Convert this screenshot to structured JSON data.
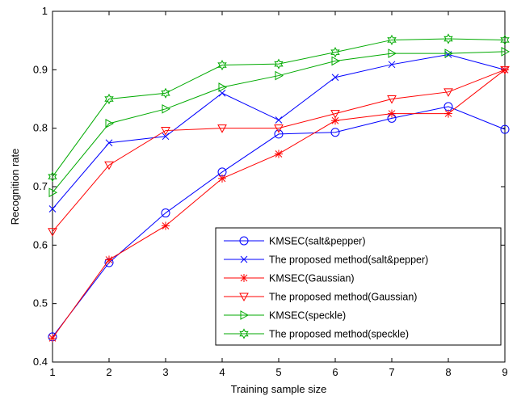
{
  "chart_data": {
    "type": "line",
    "xlabel": "Training sample size",
    "ylabel": "Recognition rate",
    "xlim": [
      1,
      9
    ],
    "ylim": [
      0.4,
      1
    ],
    "x": [
      1,
      2,
      3,
      4,
      5,
      6,
      7,
      8,
      9
    ],
    "x_ticks": [
      "1",
      "2",
      "3",
      "4",
      "5",
      "6",
      "7",
      "8",
      "9"
    ],
    "y_ticks": [
      "0.4",
      "0.5",
      "0.6",
      "0.7",
      "0.8",
      "0.9",
      "1"
    ],
    "y_tick_values": [
      0.4,
      0.5,
      0.6,
      0.7,
      0.8,
      0.9,
      1.0
    ],
    "grid": false,
    "legend_position": "bottom-right",
    "series": [
      {
        "name": "KMSEC(salt&pepper)",
        "color": "#0000ff",
        "marker": "circle",
        "values": [
          0.443,
          0.57,
          0.655,
          0.725,
          0.79,
          0.793,
          0.817,
          0.837,
          0.798
        ]
      },
      {
        "name": "The proposed method(salt&pepper)",
        "color": "#0000ff",
        "marker": "x",
        "values": [
          0.662,
          0.775,
          0.786,
          0.86,
          0.814,
          0.887,
          0.909,
          0.926,
          0.9
        ]
      },
      {
        "name": "KMSEC(Gaussian)",
        "color": "#ff0000",
        "marker": "star",
        "values": [
          0.441,
          0.575,
          0.633,
          0.714,
          0.756,
          0.813,
          0.825,
          0.825,
          0.9
        ]
      },
      {
        "name": "The proposed method(Gaussian)",
        "color": "#ff0000",
        "marker": "triangle-down",
        "values": [
          0.623,
          0.737,
          0.796,
          0.8,
          0.8,
          0.825,
          0.85,
          0.862,
          0.9
        ]
      },
      {
        "name": "KMSEC(speckle)",
        "color": "#00aa00",
        "marker": "triangle-right",
        "values": [
          0.69,
          0.808,
          0.833,
          0.87,
          0.89,
          0.915,
          0.928,
          0.928,
          0.931
        ]
      },
      {
        "name": "The proposed method(speckle)",
        "color": "#00aa00",
        "marker": "hexagram",
        "values": [
          0.717,
          0.85,
          0.86,
          0.908,
          0.91,
          0.93,
          0.951,
          0.953,
          0.951
        ]
      }
    ]
  }
}
